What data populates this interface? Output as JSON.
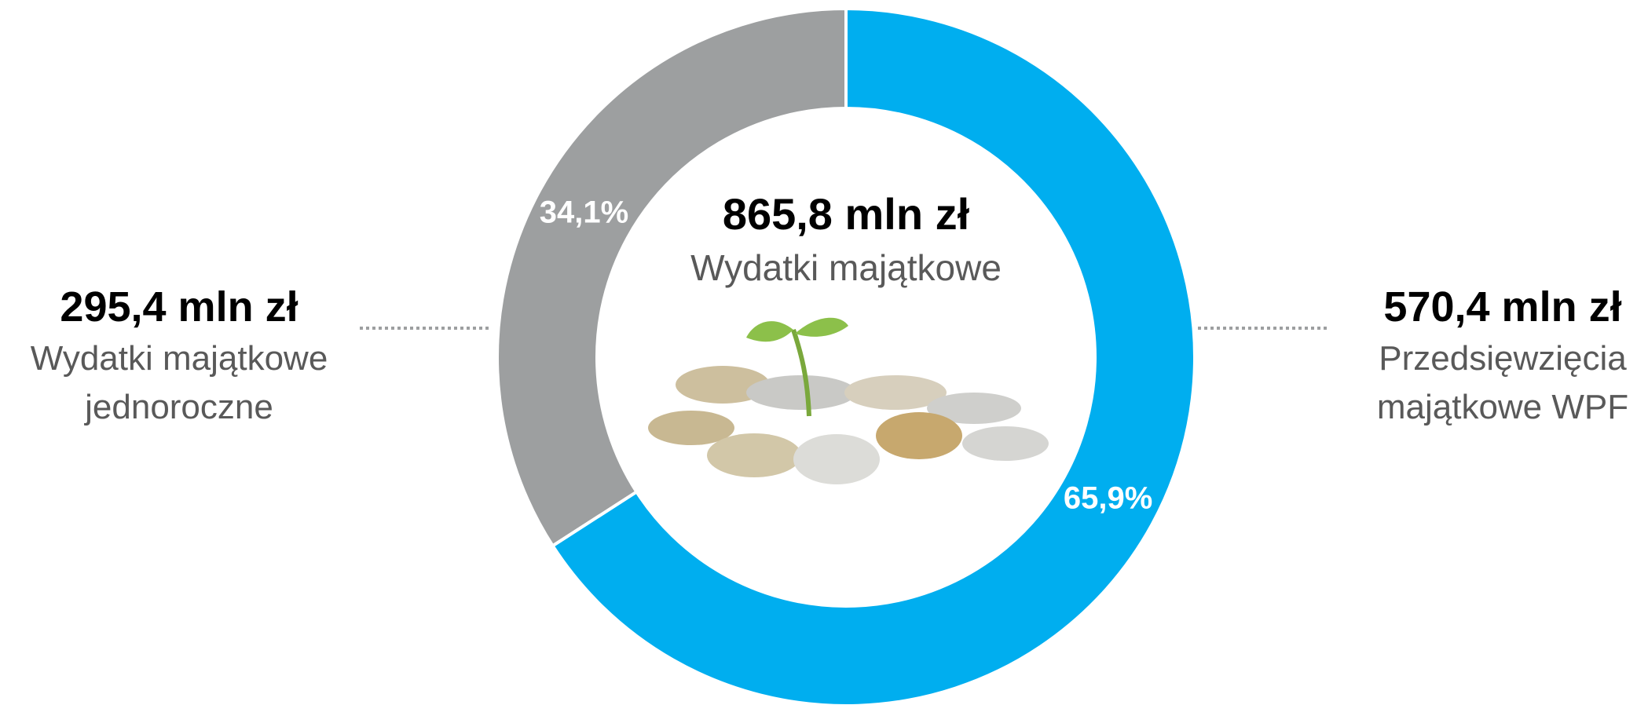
{
  "chart_data": {
    "type": "donut",
    "center_title": "865,8 mln zł",
    "center_subtitle": "Wydatki majątkowe",
    "categories": [
      "Wydatki majątkowe jednoroczne",
      "Przedsięwzięcia majątkowe WPF"
    ],
    "category_amounts": [
      "295,4 mln zł",
      "570,4 mln zł"
    ],
    "values": [
      34.1,
      65.9
    ],
    "value_labels": [
      "34,1%",
      "65,9%"
    ],
    "colors": [
      "#9d9fa0",
      "#00aeef"
    ]
  }
}
